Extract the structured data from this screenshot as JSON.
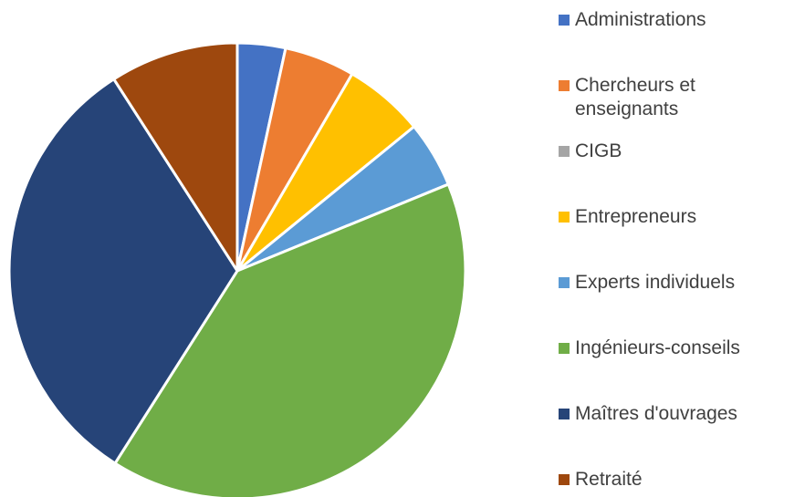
{
  "chart_data": {
    "type": "pie",
    "categories": [
      "Administrations",
      "Chercheurs et enseignants",
      "CIGB",
      "Entrepreneurs",
      "Experts individuels",
      "Ingénieurs-conseils",
      "Maîtres d'ouvrages",
      "Retraité"
    ],
    "values": [
      3.4,
      5,
      0,
      5.7,
      4.7,
      40.2,
      31.9,
      9.1
    ],
    "colors": [
      "#4472c4",
      "#ed7d31",
      "#a5a5a5",
      "#ffc000",
      "#5b9bd5",
      "#70ad47",
      "#264478",
      "#9e480e"
    ],
    "legend": "right"
  }
}
